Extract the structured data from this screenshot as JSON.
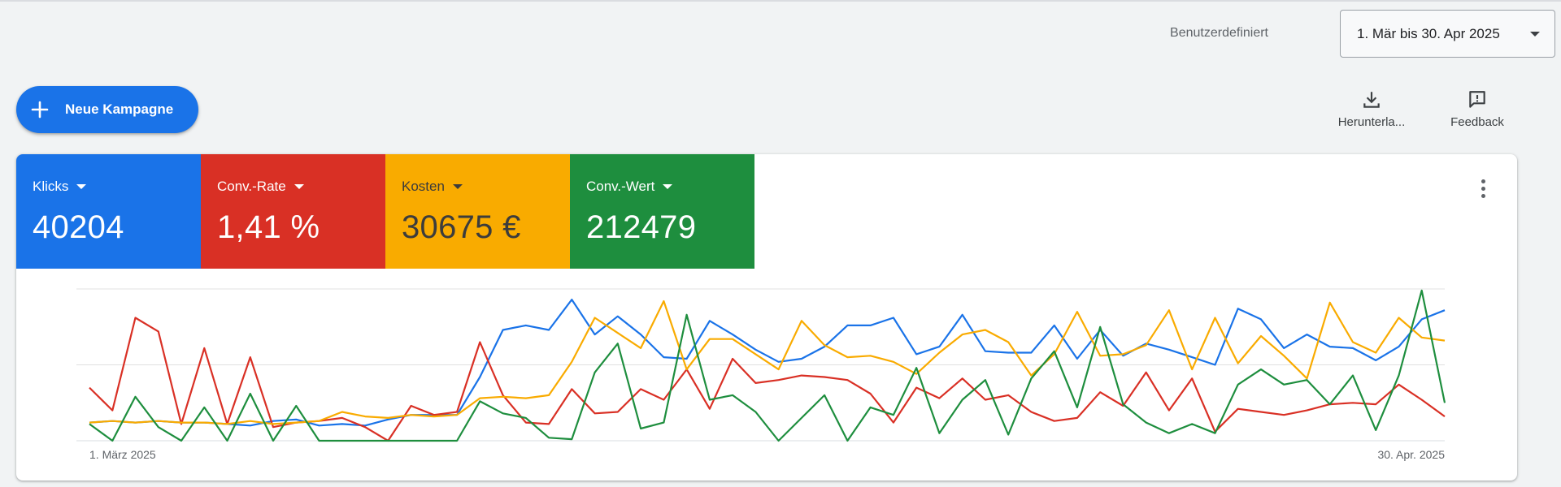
{
  "header": {
    "daterange_label": "Benutzerdefiniert",
    "daterange_value": "1. Mär bis 30. Apr 2025"
  },
  "actions": {
    "new_campaign": "Neue Kampagne",
    "download": "Herunterla...",
    "feedback": "Feedback"
  },
  "metrics": [
    {
      "name": "Klicks",
      "value": "40204",
      "color": "#1a73e8"
    },
    {
      "name": "Conv.-Rate",
      "value": "1,41 %",
      "color": "#d93025"
    },
    {
      "name": "Kosten",
      "value": "30675 €",
      "color": "#f9ab00"
    },
    {
      "name": "Conv.-Wert",
      "value": "212479",
      "color": "#1e8e3e"
    }
  ],
  "chart_data": {
    "type": "line",
    "x_start_label": "1. März 2025",
    "x_end_label": "30. Apr. 2025",
    "gridlines": 3,
    "series": [
      {
        "name": "Klicks",
        "color": "#1a73e8",
        "values": [
          0.12,
          0.13,
          0.12,
          0.13,
          0.12,
          0.12,
          0.11,
          0.1,
          0.13,
          0.14,
          0.1,
          0.11,
          0.1,
          0.14,
          0.17,
          0.17,
          0.17,
          0.42,
          0.73,
          0.76,
          0.73,
          0.93,
          0.7,
          0.82,
          0.7,
          0.55,
          0.54,
          0.79,
          0.7,
          0.6,
          0.52,
          0.54,
          0.62,
          0.76,
          0.76,
          0.81,
          0.57,
          0.62,
          0.83,
          0.59,
          0.58,
          0.58,
          0.76,
          0.54,
          0.73,
          0.56,
          0.64,
          0.6,
          0.55,
          0.5,
          0.87,
          0.8,
          0.61,
          0.7,
          0.62,
          0.61,
          0.53,
          0.62,
          0.8,
          0.86
        ]
      },
      {
        "name": "Conv.-Rate",
        "color": "#d93025",
        "values": [
          0.35,
          0.2,
          0.81,
          0.72,
          0.11,
          0.61,
          0.11,
          0.55,
          0.09,
          0.12,
          0.13,
          0.15,
          0.09,
          0.0,
          0.23,
          0.17,
          0.19,
          0.65,
          0.3,
          0.12,
          0.11,
          0.34,
          0.18,
          0.19,
          0.34,
          0.27,
          0.47,
          0.21,
          0.54,
          0.38,
          0.4,
          0.43,
          0.42,
          0.4,
          0.31,
          0.12,
          0.35,
          0.28,
          0.41,
          0.27,
          0.3,
          0.19,
          0.13,
          0.15,
          0.32,
          0.23,
          0.45,
          0.2,
          0.41,
          0.06,
          0.21,
          0.19,
          0.17,
          0.2,
          0.24,
          0.25,
          0.24,
          0.37,
          0.27,
          0.16
        ]
      },
      {
        "name": "Kosten",
        "color": "#f9ab00",
        "values": [
          0.12,
          0.13,
          0.12,
          0.13,
          0.12,
          0.12,
          0.11,
          0.13,
          0.11,
          0.12,
          0.13,
          0.19,
          0.16,
          0.15,
          0.17,
          0.16,
          0.17,
          0.28,
          0.29,
          0.28,
          0.3,
          0.52,
          0.81,
          0.71,
          0.61,
          0.92,
          0.47,
          0.67,
          0.67,
          0.57,
          0.47,
          0.79,
          0.63,
          0.55,
          0.56,
          0.52,
          0.44,
          0.58,
          0.7,
          0.73,
          0.65,
          0.43,
          0.57,
          0.85,
          0.56,
          0.57,
          0.63,
          0.86,
          0.47,
          0.81,
          0.51,
          0.69,
          0.56,
          0.41,
          0.91,
          0.65,
          0.58,
          0.81,
          0.68,
          0.66
        ]
      },
      {
        "name": "Conv.-Wert",
        "color": "#1e8e3e",
        "values": [
          0.11,
          0.0,
          0.29,
          0.09,
          0.0,
          0.22,
          0.0,
          0.31,
          0.0,
          0.23,
          0.0,
          0.0,
          0.0,
          0.0,
          0.0,
          0.0,
          0.0,
          0.26,
          0.18,
          0.15,
          0.02,
          0.01,
          0.45,
          0.64,
          0.08,
          0.12,
          0.83,
          0.27,
          0.3,
          0.19,
          0.0,
          0.15,
          0.3,
          0.0,
          0.22,
          0.17,
          0.48,
          0.05,
          0.27,
          0.4,
          0.04,
          0.41,
          0.59,
          0.22,
          0.75,
          0.24,
          0.12,
          0.05,
          0.11,
          0.05,
          0.37,
          0.47,
          0.37,
          0.4,
          0.24,
          0.43,
          0.07,
          0.43,
          0.99,
          0.25
        ]
      }
    ]
  }
}
